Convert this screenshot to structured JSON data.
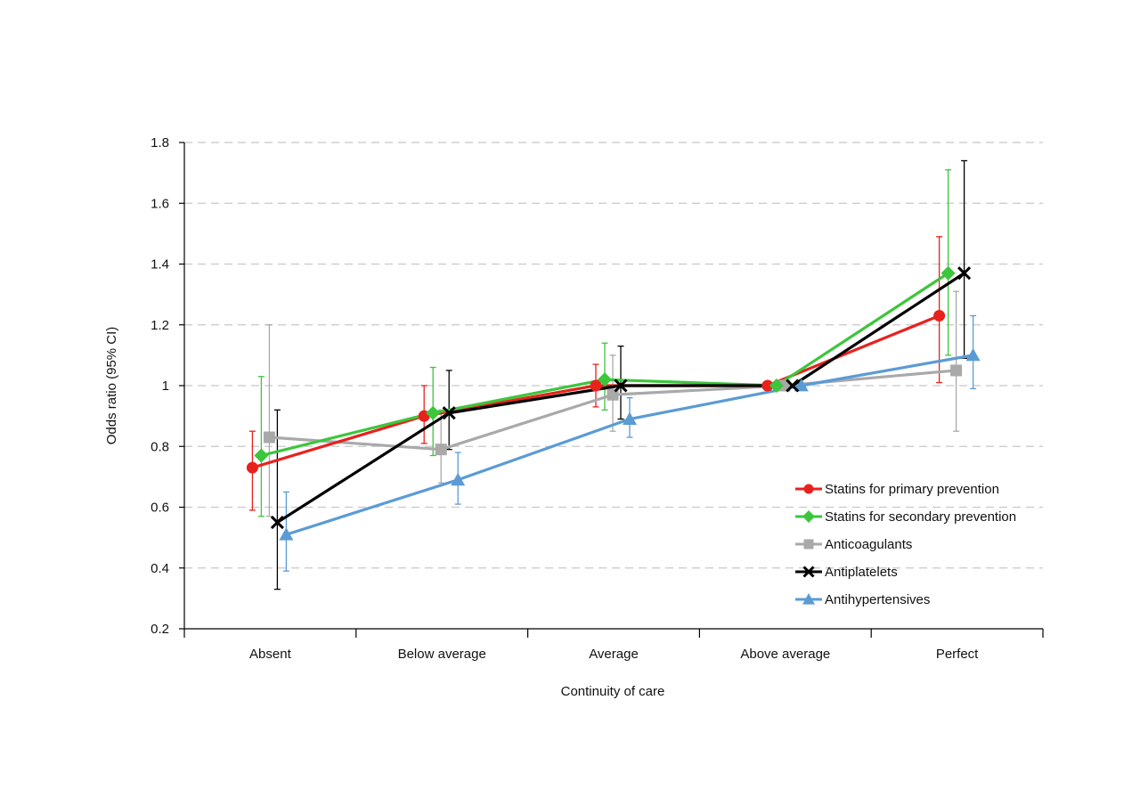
{
  "chart_data": {
    "type": "line",
    "xlabel": "Continuity of care",
    "ylabel": "Odds ratio (95% CI)",
    "categories": [
      "Absent",
      "Below average",
      "Average",
      "Above average",
      "Perfect"
    ],
    "ylim": [
      0.2,
      1.8
    ],
    "yticks": [
      0.2,
      0.4,
      0.6,
      0.8,
      1,
      1.2,
      1.4,
      1.6,
      1.8
    ],
    "ytick_labels": [
      "0.2",
      "0.4",
      "0.6",
      "0.8",
      "1",
      "1.2",
      "1.4",
      "1.6",
      "1.8"
    ],
    "grid": "horizontal dashed",
    "legend_position": "bottom-right",
    "series": [
      {
        "name": "Statins for primary prevention",
        "color": "#e8211d",
        "marker": "circle",
        "values": [
          0.73,
          0.9,
          1.0,
          1.0,
          1.23
        ],
        "ci_low": [
          0.59,
          0.81,
          0.93,
          null,
          1.01
        ],
        "ci_high": [
          0.85,
          1.0,
          1.07,
          null,
          1.49
        ]
      },
      {
        "name": "Statins for secondary prevention",
        "color": "#3cc63c",
        "marker": "diamond",
        "values": [
          0.77,
          0.91,
          1.02,
          1.0,
          1.37
        ],
        "ci_low": [
          0.57,
          0.77,
          0.92,
          null,
          1.1
        ],
        "ci_high": [
          1.03,
          1.06,
          1.14,
          null,
          1.71
        ]
      },
      {
        "name": "Anticoagulants",
        "color": "#a9a9a9",
        "marker": "square",
        "values": [
          0.83,
          0.79,
          0.97,
          1.0,
          1.05
        ],
        "ci_low": [
          0.57,
          0.68,
          0.85,
          null,
          0.85
        ],
        "ci_high": [
          1.2,
          0.92,
          1.1,
          null,
          1.31
        ]
      },
      {
        "name": "Antiplatelets",
        "color": "#000000",
        "marker": "x",
        "values": [
          0.55,
          0.91,
          1.0,
          1.0,
          1.37
        ],
        "ci_low": [
          0.33,
          0.79,
          0.89,
          null,
          1.09
        ],
        "ci_high": [
          0.92,
          1.05,
          1.13,
          null,
          1.74
        ]
      },
      {
        "name": "Antihypertensives",
        "color": "#5b9bd5",
        "marker": "triangle",
        "values": [
          0.51,
          0.69,
          0.89,
          1.0,
          1.1
        ],
        "ci_low": [
          0.39,
          0.61,
          0.83,
          null,
          0.99
        ],
        "ci_high": [
          0.65,
          0.78,
          0.96,
          null,
          1.23
        ]
      }
    ]
  }
}
